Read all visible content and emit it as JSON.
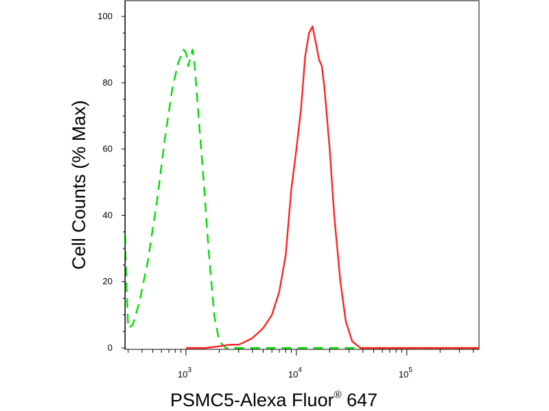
{
  "chart_data": {
    "type": "line",
    "xlabel": "PSMC5-Alexa Fluor",
    "xlabel_superscript": "®",
    "xlabel_suffix": " 647",
    "ylabel": "Cell Counts (% Max)",
    "x_scale": "log",
    "xlim": [
      280,
      450000
    ],
    "ylim": [
      0,
      100
    ],
    "y_ticks": [
      0,
      20,
      40,
      60,
      80,
      100
    ],
    "x_major_ticks": [
      {
        "value": 1000,
        "base": "10",
        "exp": "3"
      },
      {
        "value": 10000,
        "base": "10",
        "exp": "4"
      },
      {
        "value": 100000,
        "base": "10",
        "exp": "5"
      }
    ],
    "grid": false,
    "legend": "none",
    "series": [
      {
        "color": "#00dd00",
        "style": "dashed",
        "x": [
          280,
          290,
          300,
          330,
          380,
          450,
          550,
          650,
          750,
          850,
          950,
          1000,
          1050,
          1100,
          1150,
          1200,
          1300,
          1450,
          1600,
          1800,
          2000,
          2300,
          3000,
          10000,
          100000,
          450000
        ],
        "y": [
          34,
          18,
          6,
          7,
          14,
          26,
          45,
          64,
          78,
          86,
          90,
          89,
          85,
          88,
          90,
          85,
          70,
          50,
          30,
          10,
          2,
          0,
          0,
          0,
          0,
          0
        ]
      },
      {
        "color": "#ff2222",
        "style": "solid",
        "x": [
          1000,
          1500,
          2000,
          2500,
          3000,
          3500,
          4000,
          5000,
          6000,
          7000,
          8000,
          9000,
          10000,
          11000,
          12000,
          13000,
          14000,
          15000,
          16000,
          17000,
          18000,
          20000,
          22000,
          25000,
          28000,
          32000,
          38000,
          50000,
          100000,
          450000
        ],
        "y": [
          0,
          0,
          0.5,
          1,
          1,
          2,
          3,
          6,
          10,
          17,
          28,
          48,
          60,
          72,
          88,
          95,
          97,
          92,
          87,
          85,
          78,
          60,
          40,
          20,
          8,
          2,
          0,
          0,
          0,
          0
        ]
      }
    ]
  }
}
